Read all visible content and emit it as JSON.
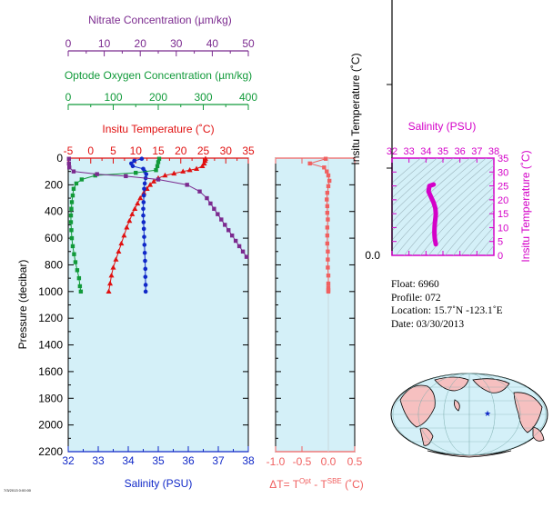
{
  "colors": {
    "nitrate": "#7b2a8f",
    "oxygen": "#119a3a",
    "temperature": "#e01010",
    "salinity": "#1028c8",
    "delta_t": "#f06060",
    "inset": "#d400c8",
    "panel_bg": "#d4f0f8",
    "land": "#f6c0c0"
  },
  "axes_labels": {
    "nitrate": "Nitrate Concentration (µm/kg)",
    "oxygen": "Optode Oxygen Concentration (µm/kg)",
    "temperature": "Insitu Temperature (˚C)",
    "salinity": "Salinity (PSU)",
    "pressure": "Pressure (decibar)",
    "delta_t_prefix": "ΔT= T",
    "delta_t_sup1": "Opt",
    "delta_t_mid": " - T",
    "delta_t_sup2": "SBE",
    "delta_t_suffix": " (˚C)",
    "inset_salinity": "Salinity (PSU)",
    "inset_temperature": "Insitu Temperature (˚C)",
    "side_temperature": "Insitu Temperature (˚C)",
    "side_zero": "0.0"
  },
  "info": {
    "float": "Float:  6960",
    "profile": "Profile:  072",
    "location": "Location:  15.7˚N  -123.1˚E",
    "date": "Date:  03/30/2013"
  },
  "footer_tiny": "7/3/2013 0:00:00",
  "chart_data": [
    {
      "type": "line",
      "title": "Main profile panel",
      "ylabel": "Pressure (decibar)",
      "ylim": [
        2200,
        0
      ],
      "yticks": [
        0,
        200,
        400,
        600,
        800,
        1000,
        1200,
        1400,
        1600,
        1800,
        2000,
        2200
      ],
      "axes": {
        "nitrate": {
          "label": "Nitrate Concentration (µm/kg)",
          "lim": [
            0,
            50
          ],
          "ticks": [
            0,
            10,
            20,
            30,
            40,
            50
          ]
        },
        "oxygen": {
          "label": "Optode Oxygen Concentration (µm/kg)",
          "lim": [
            0,
            400
          ],
          "ticks": [
            0,
            100,
            200,
            300,
            400
          ]
        },
        "temperature": {
          "label": "Insitu Temperature (˚C)",
          "lim": [
            -5,
            35
          ],
          "ticks": [
            -5,
            0,
            5,
            10,
            15,
            20,
            25,
            30,
            35
          ]
        },
        "salinity": {
          "label": "Salinity (PSU)",
          "lim": [
            32,
            38
          ],
          "ticks": [
            32,
            33,
            34,
            35,
            36,
            37,
            38
          ]
        }
      },
      "series": [
        {
          "key": "temperature",
          "marker": "triangle",
          "x": [
            25.5,
            25.4,
            25.2,
            24.8,
            23.5,
            22.0,
            20.5,
            18.5,
            16.5,
            15.0,
            14.0,
            13.2,
            12.5,
            11.8,
            11.0,
            10.4,
            9.8,
            9.2,
            8.6,
            8.0,
            7.4,
            6.8,
            6.2,
            5.6,
            5.0,
            4.6,
            4.3,
            4.0
          ],
          "y": [
            5,
            20,
            40,
            60,
            80,
            90,
            100,
            115,
            130,
            150,
            175,
            200,
            230,
            260,
            300,
            340,
            380,
            420,
            470,
            520,
            580,
            640,
            700,
            760,
            820,
            880,
            940,
            1000
          ]
        },
        {
          "key": "salinity",
          "marker": "circle",
          "x": [
            34.45,
            34.2,
            34.1,
            34.15,
            34.5,
            34.55,
            34.6,
            34.58,
            34.55,
            34.53,
            34.52,
            34.51,
            34.5,
            34.5,
            34.51,
            34.52,
            34.53,
            34.54,
            34.55,
            34.56,
            34.57,
            34.57,
            34.58,
            34.58
          ],
          "y": [
            5,
            20,
            40,
            60,
            80,
            100,
            120,
            150,
            190,
            230,
            280,
            330,
            380,
            430,
            480,
            530,
            590,
            650,
            710,
            770,
            830,
            890,
            950,
            1000
          ]
        },
        {
          "key": "oxygen",
          "marker": "square",
          "x": [
            202,
            200,
            198,
            195,
            150,
            60,
            30,
            18,
            12,
            10,
            8,
            7,
            6,
            6,
            7,
            8,
            10,
            13,
            16,
            20,
            24,
            26,
            28
          ],
          "y": [
            5,
            30,
            60,
            90,
            110,
            130,
            160,
            190,
            230,
            280,
            330,
            380,
            430,
            480,
            540,
            600,
            660,
            720,
            780,
            840,
            900,
            960,
            1000
          ]
        },
        {
          "key": "nitrate",
          "marker": "square",
          "x": [
            0.2,
            0.2,
            0.3,
            1.5,
            8.0,
            16.0,
            25.0,
            33.0,
            36.5,
            38.5,
            39.5,
            40.5,
            41.5,
            42.5,
            43.5,
            44.5,
            45.5,
            46.5,
            47.5,
            48.5,
            49.5
          ],
          "y": [
            5,
            40,
            70,
            100,
            120,
            135,
            160,
            200,
            250,
            300,
            340,
            380,
            420,
            460,
            500,
            540,
            580,
            620,
            660,
            700,
            740
          ]
        }
      ]
    },
    {
      "type": "line",
      "title": "Temperature difference panel",
      "xlabel": "ΔT= T^Opt - T^SBE (˚C)",
      "xlim": [
        -1.0,
        0.5
      ],
      "xticks": [
        -1.0,
        -0.5,
        0.0,
        0.5
      ],
      "ylim": [
        2200,
        0
      ],
      "series": [
        {
          "key": "delta_t",
          "marker": "square",
          "x": [
            -0.05,
            -0.35,
            -0.08,
            -0.03,
            0.0,
            0.02,
            0.0,
            -0.02,
            -0.03,
            -0.02,
            -0.02,
            -0.01,
            -0.02,
            -0.02,
            -0.02,
            -0.01,
            -0.01,
            -0.01,
            0.0,
            0.0,
            0.0,
            0.0,
            0.0
          ],
          "y": [
            5,
            40,
            70,
            100,
            130,
            170,
            210,
            260,
            310,
            360,
            410,
            460,
            520,
            580,
            640,
            700,
            760,
            820,
            880,
            940,
            970,
            990,
            1000
          ]
        }
      ]
    },
    {
      "type": "line",
      "title": "T-S inset",
      "xlabel": "Salinity (PSU)",
      "ylabel": "Insitu Temperature (˚C)",
      "xlim": [
        32,
        38
      ],
      "ylim": [
        0,
        35
      ],
      "xticks": [
        32,
        33,
        34,
        35,
        36,
        37,
        38
      ],
      "yticks": [
        0,
        5,
        10,
        15,
        20,
        25,
        30,
        35
      ],
      "series": [
        {
          "key": "ts",
          "x": [
            34.45,
            34.2,
            34.15,
            34.3,
            34.45,
            34.55,
            34.58,
            34.56,
            34.53,
            34.51,
            34.5,
            34.5,
            34.52,
            34.55,
            34.58
          ],
          "y": [
            25.5,
            25.0,
            23.0,
            21.0,
            19.0,
            17.0,
            15.0,
            13.5,
            12.0,
            10.5,
            9.0,
            7.5,
            6.0,
            5.0,
            4.0
          ]
        }
      ]
    }
  ]
}
